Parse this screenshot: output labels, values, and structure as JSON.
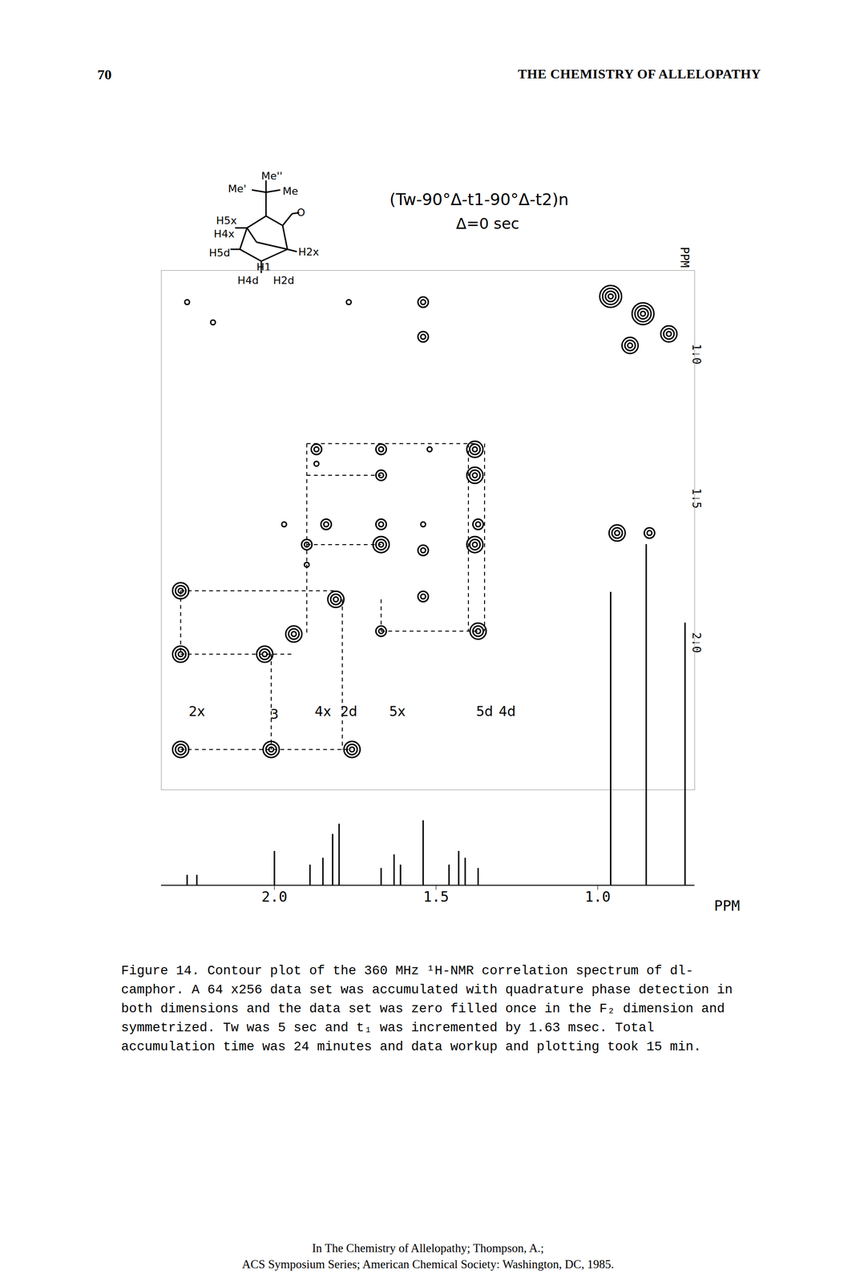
{
  "page": {
    "number": "70",
    "running_head": "THE CHEMISTRY OF ALLELOPATHY"
  },
  "structure": {
    "labels": [
      "Me''",
      "Me'",
      "Me",
      "O",
      "H5x",
      "H4x",
      "H2x",
      "H5d",
      "H1",
      "H4d",
      "H2d"
    ]
  },
  "pulse_sequence": "(Tw-90°Δ-t1-90°Δ-t2)n",
  "delay": "Δ=0 sec",
  "chart_data": {
    "type": "contour",
    "xlim": [
      2.35,
      0.7
    ],
    "ylim": [
      2.51,
      0.71
    ],
    "yticks": [
      {
        "value": 1,
        "label": "1.0"
      },
      1.5,
      {
        "value": 2,
        "label": "2.0"
      }
    ],
    "y_label": "PPM",
    "peaks": [
      {
        "x": 0.96,
        "y": 0.8,
        "levels": 4
      },
      {
        "x": 0.86,
        "y": 0.86,
        "levels": 4
      },
      {
        "x": 0.78,
        "y": 0.93,
        "levels": 3
      },
      {
        "x": 0.9,
        "y": 0.97,
        "levels": 3
      },
      {
        "x": 1.54,
        "y": 0.82,
        "levels": 2
      },
      {
        "x": 1.54,
        "y": 0.94,
        "levels": 2
      },
      {
        "x": 2.27,
        "y": 0.82,
        "levels": 1
      },
      {
        "x": 2.19,
        "y": 0.89,
        "levels": 1
      },
      {
        "x": 1.77,
        "y": 0.82,
        "levels": 1
      },
      {
        "x": 1.87,
        "y": 1.33,
        "levels": 2
      },
      {
        "x": 1.87,
        "y": 1.38,
        "levels": 1
      },
      {
        "x": 1.67,
        "y": 1.33,
        "levels": 2
      },
      {
        "x": 1.67,
        "y": 1.42,
        "levels": 2
      },
      {
        "x": 1.52,
        "y": 1.33,
        "levels": 1
      },
      {
        "x": 1.38,
        "y": 1.33,
        "levels": 3
      },
      {
        "x": 1.38,
        "y": 1.42,
        "levels": 3
      },
      {
        "x": 0.94,
        "y": 1.62,
        "levels": 3
      },
      {
        "x": 0.84,
        "y": 1.62,
        "levels": 2
      },
      {
        "x": 1.97,
        "y": 1.59,
        "levels": 1
      },
      {
        "x": 1.84,
        "y": 1.59,
        "levels": 2
      },
      {
        "x": 1.67,
        "y": 1.59,
        "levels": 2
      },
      {
        "x": 1.54,
        "y": 1.59,
        "levels": 1
      },
      {
        "x": 1.37,
        "y": 1.59,
        "levels": 2
      },
      {
        "x": 1.9,
        "y": 1.66,
        "levels": 2
      },
      {
        "x": 1.9,
        "y": 1.73,
        "levels": 1
      },
      {
        "x": 1.67,
        "y": 1.66,
        "levels": 3
      },
      {
        "x": 1.54,
        "y": 1.68,
        "levels": 2
      },
      {
        "x": 1.38,
        "y": 1.66,
        "levels": 3
      },
      {
        "x": 1.54,
        "y": 1.84,
        "levels": 2
      },
      {
        "x": 2.29,
        "y": 1.82,
        "levels": 3
      },
      {
        "x": 1.81,
        "y": 1.85,
        "levels": 3
      },
      {
        "x": 1.94,
        "y": 1.97,
        "levels": 3
      },
      {
        "x": 1.67,
        "y": 1.96,
        "levels": 2
      },
      {
        "x": 1.37,
        "y": 1.96,
        "levels": 3
      },
      {
        "x": 2.29,
        "y": 2.04,
        "levels": 3
      },
      {
        "x": 2.03,
        "y": 2.04,
        "levels": 3
      },
      {
        "x": 2.29,
        "y": 2.37,
        "levels": 3
      },
      {
        "x": 2.01,
        "y": 2.37,
        "levels": 3
      },
      {
        "x": 1.76,
        "y": 2.37,
        "levels": 3
      }
    ],
    "dashed_lines": [
      [
        2.29,
        2.04,
        1.94,
        2.04
      ],
      [
        2.29,
        1.82,
        1.81,
        1.82
      ],
      [
        2.29,
        1.82,
        2.29,
        2.04
      ],
      [
        2.29,
        2.37,
        1.76,
        2.37
      ],
      [
        2.01,
        2.04,
        2.01,
        2.37
      ],
      [
        1.79,
        1.85,
        1.79,
        2.37
      ],
      [
        1.9,
        1.31,
        1.38,
        1.31
      ],
      [
        1.9,
        1.42,
        1.67,
        1.42
      ],
      [
        1.9,
        1.31,
        1.9,
        1.97
      ],
      [
        1.67,
        1.96,
        1.37,
        1.96
      ],
      [
        1.4,
        1.31,
        1.4,
        1.96
      ],
      [
        1.35,
        1.31,
        1.35,
        1.96
      ],
      [
        1.67,
        1.85,
        1.67,
        1.96
      ],
      [
        1.9,
        1.66,
        1.67,
        1.66
      ]
    ],
    "peak_labels": [
      {
        "text": "2x",
        "x": 2.24,
        "y": 2.24
      },
      {
        "text": "3",
        "x": 2.0,
        "y": 2.25
      },
      {
        "text": "4x",
        "x": 1.85,
        "y": 2.24
      },
      {
        "text": "2d",
        "x": 1.77,
        "y": 2.24
      },
      {
        "text": "5x",
        "x": 1.62,
        "y": 2.24
      },
      {
        "text": "5d",
        "x": 1.35,
        "y": 2.24
      },
      {
        "text": "4d",
        "x": 1.28,
        "y": 2.24
      }
    ],
    "spectrum": {
      "type": "stick",
      "x": [
        2.27,
        2.24,
        2.0,
        1.89,
        1.85,
        1.82,
        1.8,
        1.67,
        1.63,
        1.61,
        1.54,
        1.46,
        1.43,
        1.41,
        1.37,
        0.96,
        0.85,
        0.73
      ],
      "values": [
        0.03,
        0.03,
        0.1,
        0.06,
        0.08,
        0.15,
        0.18,
        0.05,
        0.09,
        0.06,
        0.19,
        0.06,
        0.1,
        0.08,
        0.05,
        0.86,
        1.0,
        0.77
      ],
      "xlim": [
        2.35,
        0.7
      ],
      "ylim": [
        0,
        1
      ],
      "xticks": [
        {
          "value": 2,
          "label": "2.0"
        },
        1.5,
        {
          "value": 1,
          "label": "1.0"
        }
      ],
      "x_label": "PPM"
    }
  },
  "caption": "Figure 14. Contour plot of the 360 MHz ¹H-NMR correlation spectrum of dl-camphor. A 64 x256 data set was accumulated with quadrature phase detection in both dimensions and the data set was zero filled once in the F₂ dimension and symmetrized. Tw was 5 sec and t₁ was incremented by 1.63 msec. Total accumulation time was 24 minutes and data workup and plotting took 15 min.",
  "footer": [
    "In The Chemistry of Allelopathy; Thompson, A.;",
    "ACS Symposium Series; American Chemical Society: Washington, DC, 1985."
  ]
}
